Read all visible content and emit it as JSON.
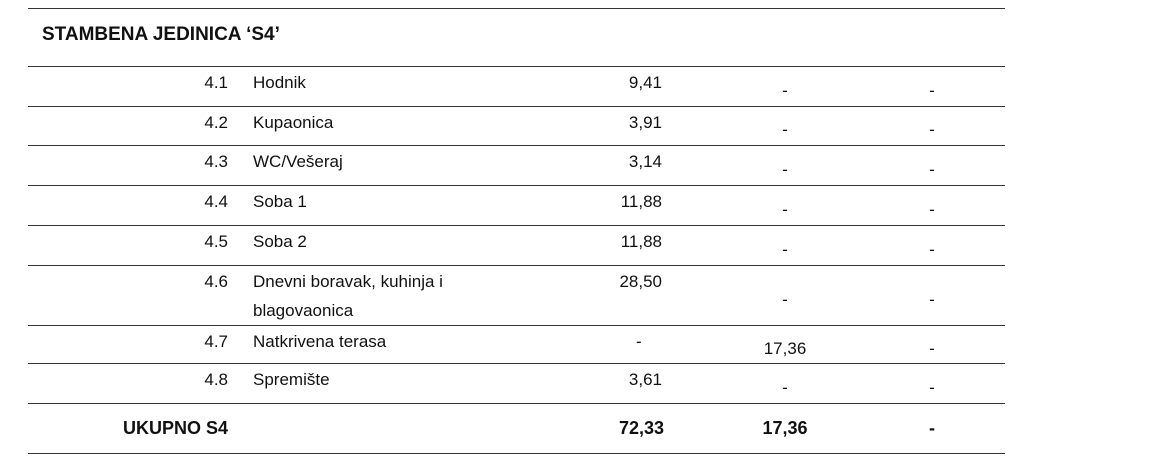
{
  "title": "STAMBENA JEDINICA  ‘S4’",
  "table": {
    "rows": [
      [
        "4.1",
        "Hodnik",
        "9,41",
        "-",
        "-"
      ],
      [
        "4.2",
        "Kupaonica",
        "3,91",
        "-",
        "-"
      ],
      [
        "4.3",
        "WC/Vešeraj",
        "3,14",
        "-",
        "-"
      ],
      [
        "4.4",
        "Soba 1",
        "11,88",
        "-",
        "-"
      ],
      [
        "4.5",
        "Soba 2",
        "11,88",
        "-",
        "-"
      ],
      [
        "4.6",
        "Dnevni boravak, kuhinja i blagovaonica",
        "28,50",
        "-",
        "-"
      ],
      [
        "4.7",
        "Natkrivena terasa",
        "-",
        "17,36",
        "-"
      ],
      [
        "4.8",
        "Spremište",
        "3,61",
        "-",
        "-"
      ]
    ],
    "total": [
      "UKUPNO S4",
      "72,33",
      "17,36",
      "-"
    ]
  }
}
